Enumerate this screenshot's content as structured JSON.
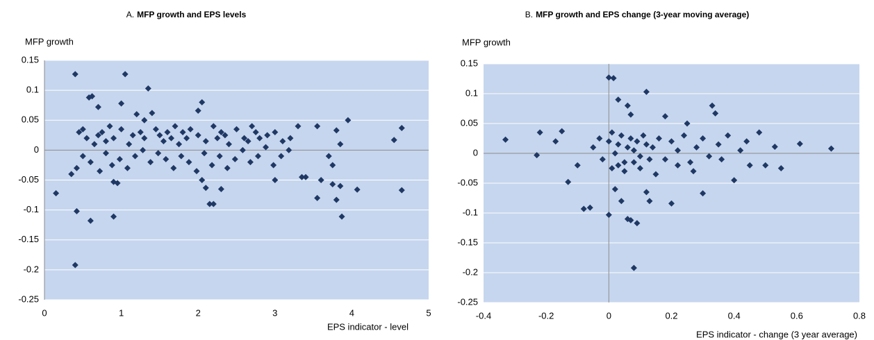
{
  "chart_data": [
    {
      "type": "scatter",
      "panel": "A.",
      "title": "MFP growth and EPS levels",
      "y_label": "MFP growth",
      "x_label": "EPS indicator - level",
      "color": "#1f3864",
      "grid": true,
      "xlim": [
        0,
        5
      ],
      "xticks": [
        0,
        1,
        2,
        3,
        4,
        5
      ],
      "ylim": [
        -0.25,
        0.15
      ],
      "yticks": [
        0.15,
        0.1,
        0.05,
        0,
        -0.05,
        -0.1,
        -0.15,
        -0.2,
        -0.25
      ],
      "x": [
        0.15,
        0.4,
        0.4,
        0.42,
        0.6,
        0.9,
        1.05,
        1.35,
        0.35,
        0.58,
        0.62,
        0.7,
        0.9,
        0.95,
        1.0,
        1.2,
        1.4,
        1.3,
        2.05,
        2.0,
        2.1,
        2.15,
        2.2,
        2.05,
        2.3,
        3.0,
        3.35,
        3.4,
        3.55,
        3.6,
        3.75,
        3.8,
        3.85,
        3.87,
        4.07,
        3.95,
        4.55,
        4.65,
        4.65,
        3.55,
        3.8,
        3.85,
        3.7,
        3.75,
        3.3,
        3.0,
        2.7,
        0.45,
        0.5,
        0.55,
        0.65,
        0.7,
        0.75,
        0.8,
        0.85,
        0.9,
        1.0,
        1.1,
        1.15,
        1.25,
        1.3,
        1.45,
        1.5,
        1.55,
        1.6,
        1.65,
        1.7,
        1.75,
        1.8,
        1.85,
        1.9,
        2.0,
        2.1,
        2.2,
        2.25,
        2.3,
        2.35,
        2.4,
        2.5,
        2.6,
        2.65,
        2.75,
        2.8,
        2.9,
        3.1,
        3.2,
        0.42,
        0.5,
        0.6,
        0.72,
        0.8,
        0.88,
        0.98,
        1.08,
        1.18,
        1.28,
        1.38,
        1.48,
        1.58,
        1.68,
        1.78,
        1.88,
        1.98,
        2.08,
        2.18,
        2.28,
        2.38,
        2.48,
        2.58,
        2.68,
        2.78,
        2.88,
        2.98,
        3.08,
        3.18
      ],
      "values": [
        -0.072,
        0.127,
        -0.192,
        -0.102,
        -0.118,
        -0.111,
        0.127,
        0.103,
        -0.04,
        0.088,
        0.09,
        0.072,
        -0.053,
        -0.055,
        0.078,
        0.06,
        0.062,
        0.05,
        0.08,
        0.066,
        -0.063,
        -0.09,
        -0.09,
        -0.05,
        -0.065,
        -0.05,
        -0.045,
        -0.045,
        -0.08,
        -0.05,
        -0.057,
        -0.083,
        -0.06,
        -0.111,
        -0.066,
        0.05,
        0.017,
        0.037,
        -0.067,
        0.04,
        0.033,
        0.01,
        -0.01,
        -0.025,
        0.04,
        0.03,
        0.04,
        0.03,
        0.035,
        0.02,
        0.01,
        0.025,
        0.03,
        0.015,
        0.04,
        0.02,
        0.035,
        0.01,
        0.025,
        0.03,
        0.02,
        0.035,
        0.025,
        0.015,
        0.03,
        0.02,
        0.04,
        0.01,
        0.03,
        0.02,
        0.035,
        0.025,
        0.015,
        0.04,
        0.02,
        0.03,
        0.025,
        0.01,
        0.035,
        0.02,
        0.015,
        0.03,
        0.02,
        0.025,
        0.015,
        0.02,
        -0.03,
        -0.01,
        -0.02,
        -0.035,
        -0.005,
        -0.025,
        -0.015,
        -0.03,
        -0.01,
        0.0,
        -0.02,
        -0.005,
        -0.015,
        -0.03,
        -0.01,
        -0.02,
        -0.035,
        -0.005,
        -0.025,
        -0.01,
        -0.03,
        -0.015,
        0.0,
        -0.02,
        -0.01,
        0.005,
        -0.025,
        -0.01,
        0.0
      ]
    },
    {
      "type": "scatter",
      "panel": "B.",
      "title": "MFP growth and EPS change (3-year moving average)",
      "y_label": "MFP growth",
      "x_label": "EPS indicator - change (3 year average)",
      "color": "#1f3864",
      "grid": true,
      "xlim": [
        -0.4,
        0.8
      ],
      "xticks": [
        -0.4,
        -0.2,
        0,
        0.2,
        0.4,
        0.6,
        0.8
      ],
      "ylim": [
        -0.25,
        0.15
      ],
      "yticks": [
        0.15,
        0.1,
        0.05,
        0,
        -0.05,
        -0.1,
        -0.15,
        -0.2,
        -0.25
      ],
      "x": [
        -0.33,
        -0.23,
        -0.22,
        -0.17,
        -0.15,
        -0.13,
        -0.08,
        -0.06,
        0,
        0.015,
        0.12,
        0.08,
        0,
        0.06,
        0.07,
        0.09,
        0.12,
        0.13,
        0.2,
        0.3,
        0.33,
        0.34,
        0.4,
        0.45,
        0.5,
        0.55,
        0.53,
        0.61,
        0.71,
        0.48,
        0.03,
        0.06,
        0.07,
        0.18,
        0.25,
        0.02,
        0.04,
        -0.1,
        -0.05,
        -0.03,
        -0.02,
        0.0,
        0.01,
        0.02,
        0.03,
        0.04,
        0.05,
        0.06,
        0.07,
        0.08,
        0.09,
        0.1,
        0.11,
        0.12,
        0.14,
        0.16,
        0.18,
        0.2,
        0.22,
        0.24,
        0.26,
        0.28,
        0.3,
        0.32,
        0.35,
        0.38,
        0.42,
        0.44,
        0.01,
        0.03,
        0.05,
        0.08,
        0.1,
        0.13,
        0.15,
        0.22,
        0.27,
        0.36
      ],
      "values": [
        0.023,
        -0.003,
        0.035,
        0.02,
        0.037,
        -0.048,
        -0.093,
        -0.091,
        0.127,
        0.126,
        0.103,
        -0.192,
        -0.103,
        -0.11,
        -0.112,
        -0.117,
        -0.065,
        -0.08,
        -0.084,
        -0.067,
        0.08,
        0.067,
        -0.045,
        -0.02,
        -0.02,
        -0.025,
        0.011,
        0.016,
        0.008,
        0.035,
        0.09,
        0.08,
        0.065,
        0.062,
        0.05,
        -0.06,
        -0.08,
        -0.02,
        0.01,
        0.025,
        -0.01,
        0.02,
        0.035,
        0.0,
        0.015,
        0.03,
        -0.015,
        0.01,
        0.025,
        0.005,
        0.02,
        -0.005,
        0.03,
        0.015,
        0.01,
        0.025,
        -0.01,
        0.02,
        0.005,
        0.03,
        -0.015,
        0.01,
        0.025,
        -0.005,
        0.015,
        0.03,
        0.005,
        0.02,
        -0.025,
        -0.02,
        -0.03,
        -0.015,
        -0.025,
        -0.01,
        -0.035,
        -0.02,
        -0.03,
        -0.01
      ]
    }
  ]
}
